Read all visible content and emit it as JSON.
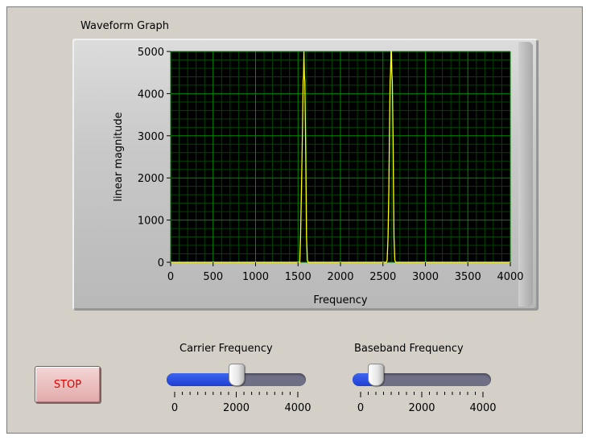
{
  "graph": {
    "caption": "Waveform Graph",
    "chart_data": {
      "type": "line",
      "xlabel": "Frequency",
      "ylabel": "linear magnitude",
      "xlim": [
        0,
        4000
      ],
      "ylim": [
        0,
        5000
      ],
      "xticks": [
        0,
        500,
        1000,
        1500,
        2000,
        2500,
        3000,
        3500,
        4000
      ],
      "yticks": [
        0,
        1000,
        2000,
        3000,
        4000,
        5000
      ],
      "xtick_labels": [
        "0",
        "500",
        "1000",
        "1500",
        "2000",
        "2500",
        "3000",
        "3500",
        "4000"
      ],
      "ytick_labels": [
        "0",
        "1000",
        "2000",
        "3000",
        "4000",
        "5000"
      ],
      "grid": true,
      "colors": {
        "background": "#000000",
        "grid_major": "#008a00",
        "grid_minor": "#004400",
        "trace": "#ffff00"
      },
      "series": [
        {
          "x": [
            0,
            1500,
            1520,
            1530,
            1540,
            1550,
            1555,
            1560,
            1565,
            1570,
            1575,
            1580,
            1585,
            1590,
            1595,
            1600,
            1610,
            1620,
            1630,
            1650,
            2500,
            2540,
            2550,
            2560,
            2570,
            2575,
            2580,
            2585,
            2590,
            2595,
            2600,
            2605,
            2610,
            2615,
            2620,
            2625,
            2630,
            2640,
            2650,
            2660,
            2680,
            4000
          ],
          "y": [
            0,
            0,
            0,
            600,
            1700,
            2800,
            3600,
            4300,
            4400,
            5000,
            4400,
            4300,
            3600,
            2800,
            1700,
            600,
            50,
            0,
            0,
            0,
            0,
            0,
            50,
            600,
            1700,
            2800,
            3600,
            4300,
            4500,
            5000,
            5000,
            4500,
            4300,
            3600,
            2800,
            1700,
            600,
            50,
            0,
            0,
            0,
            0
          ]
        }
      ]
    }
  },
  "stop_button": {
    "label": "STOP"
  },
  "carrier": {
    "label": "Carrier Frequency",
    "min": 0,
    "max": 4000,
    "value": 2000,
    "tick_labels": [
      "0",
      "2000",
      "4000"
    ]
  },
  "baseband": {
    "label": "Baseband Frequency",
    "min": 0,
    "max": 4000,
    "value": 500,
    "tick_labels": [
      "0",
      "2000",
      "4000"
    ]
  }
}
